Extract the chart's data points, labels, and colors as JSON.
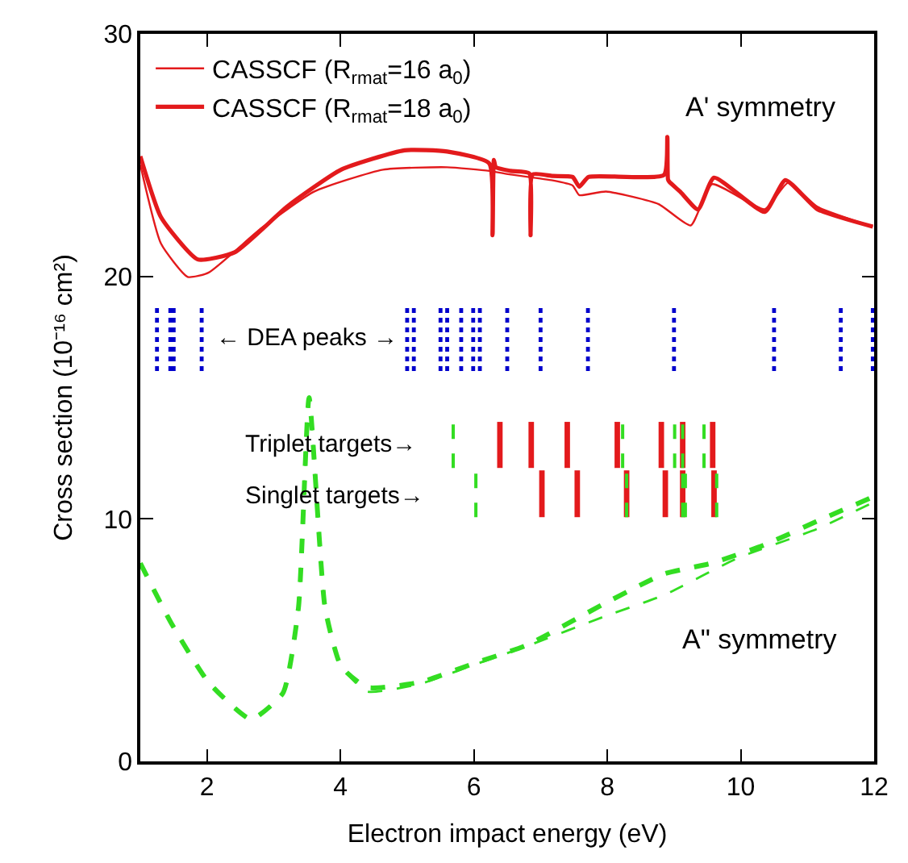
{
  "chart_data": {
    "type": "line",
    "xlabel": "Electron impact energy (eV)",
    "ylabel": "Cross section (10⁻¹⁶ cm²)",
    "xlim": [
      1,
      12
    ],
    "xticks": [
      2,
      4,
      6,
      8,
      10,
      12
    ],
    "ylim": [
      0,
      30
    ],
    "yticks": [
      0,
      10,
      20,
      30
    ],
    "legend": "top left",
    "marker": "none",
    "annotations": [
      "A' symmetry",
      "A\" symmetry",
      "← DEA peaks →",
      "Triplet targets→",
      "Singlet targets→"
    ],
    "series": [
      {
        "name": "CASSCF (R$_{rmat}$=16 a$_{0}$)",
        "color": "#e31a1c",
        "line_style": "solid",
        "x": [
          1.0,
          1.31,
          1.71,
          2.02,
          2.82,
          3.61,
          4.64,
          5.6,
          6.23,
          6.55,
          7.18,
          7.48,
          7.58,
          7.98,
          8.77,
          9.25,
          9.57,
          10.36,
          10.71,
          11.15,
          11.98
        ],
        "values": [
          24.6,
          21.35,
          19.98,
          20.15,
          22.0,
          23.5,
          24.4,
          24.5,
          24.35,
          24.2,
          23.96,
          23.75,
          23.35,
          23.5,
          22.98,
          22.1,
          23.8,
          22.77,
          23.86,
          22.87,
          22.05
        ]
      },
      {
        "name": "CASSCF (R$_{rmat}$=18 a$_{0}$)",
        "color": "#e31a1c",
        "line_style": "solid",
        "x": [
          1.0,
          1.31,
          1.86,
          2.42,
          3.21,
          4.01,
          4.96,
          5.6,
          6.23,
          6.28,
          6.3,
          6.33,
          6.55,
          6.83,
          6.85,
          6.88,
          7.18,
          7.48,
          7.58,
          7.72,
          8.85,
          8.9,
          8.91,
          8.93,
          9.09,
          9.36,
          9.6,
          10.36,
          10.67,
          11.15,
          11.98
        ],
        "values": [
          24.95,
          22.44,
          20.7,
          21.0,
          22.9,
          24.4,
          25.2,
          25.15,
          24.66,
          21.7,
          24.8,
          24.5,
          24.35,
          24.25,
          21.7,
          24.2,
          24.14,
          24.1,
          23.7,
          24.1,
          24.18,
          25.75,
          24.0,
          23.9,
          23.5,
          22.76,
          24.07,
          22.66,
          23.97,
          22.77,
          22.05
        ]
      },
      {
        "color": "#33dd22",
        "line_style": "dashed",
        "x": [
          1.0,
          1.47,
          2.02,
          2.66,
          3.14,
          3.37,
          3.53,
          3.77,
          4.01,
          4.4,
          5.2,
          5.99,
          6.79,
          7.98,
          8.85,
          9.96,
          11.15,
          11.98
        ],
        "values": [
          8.17,
          5.67,
          3.27,
          1.74,
          2.83,
          6.32,
          15.0,
          6.32,
          3.92,
          2.88,
          3.2,
          3.97,
          4.75,
          6.0,
          6.86,
          8.39,
          9.59,
          10.67
        ]
      },
      {
        "color": "#33dd22",
        "line_style": "dashed",
        "x": [
          1.0,
          1.47,
          2.02,
          2.66,
          3.14,
          3.37,
          3.53,
          3.77,
          4.01,
          4.4,
          5.2,
          5.99,
          6.79,
          7.98,
          8.85,
          9.56,
          10.36,
          11.15,
          11.98
        ],
        "values": [
          8.17,
          5.67,
          3.27,
          1.74,
          2.83,
          6.32,
          15.0,
          6.32,
          3.92,
          3.05,
          3.27,
          4.03,
          4.79,
          6.54,
          7.73,
          8.17,
          8.93,
          9.91,
          10.9
        ]
      },
      {
        "color": "#0000cc",
        "line_style": "dotted",
        "x": [
          1.25,
          1.25,
          null,
          1.45,
          1.45,
          null,
          1.5,
          1.5,
          null,
          1.92,
          1.92,
          null,
          5.0,
          5.0,
          null,
          5.1,
          5.1,
          null,
          5.5,
          5.5,
          null,
          5.6,
          5.6,
          null,
          5.81,
          5.81,
          null,
          5.99,
          5.99,
          null,
          6.09,
          6.09,
          null,
          6.5,
          6.5,
          null,
          7.0,
          7.0,
          null,
          7.71,
          7.71,
          null,
          9.0,
          9.0,
          null,
          10.5,
          10.5,
          null,
          11.5,
          11.5,
          null,
          11.98,
          11.98
        ],
        "values": [
          16.1,
          18.7,
          null,
          16.1,
          18.7,
          null,
          16.1,
          18.7,
          null,
          16.1,
          18.7,
          null,
          16.1,
          18.7,
          null,
          16.1,
          18.7,
          null,
          16.1,
          18.7,
          null,
          16.1,
          18.7,
          null,
          16.1,
          18.7,
          null,
          16.1,
          18.7,
          null,
          16.1,
          18.7,
          null,
          16.1,
          18.7,
          null,
          16.1,
          18.7,
          null,
          16.1,
          18.7,
          null,
          16.1,
          18.7,
          null,
          16.1,
          18.7,
          null,
          16.1,
          18.7,
          null,
          16.1,
          18.7
        ]
      },
      {
        "color": "#e31a1c",
        "line_style": "solid",
        "x": [
          6.39,
          6.39,
          null,
          6.86,
          6.86,
          null,
          7.4,
          7.4,
          null,
          8.15,
          8.15,
          null,
          8.81,
          8.81,
          null,
          9.13,
          9.13,
          null,
          9.58,
          9.58
        ],
        "values": [
          12.1,
          14.0,
          null,
          12.1,
          14.0,
          null,
          12.1,
          14.0,
          null,
          12.1,
          14.0,
          null,
          12.1,
          14.0,
          null,
          12.1,
          14.0,
          null,
          12.1,
          14.0
        ]
      },
      {
        "color": "#33dd22",
        "line_style": "dashed",
        "x": [
          5.69,
          5.69,
          null,
          8.23,
          8.23,
          null,
          9.01,
          9.01,
          null,
          9.13,
          9.13,
          null,
          9.45,
          9.45
        ],
        "values": [
          12.1,
          14.0,
          null,
          12.1,
          14.0,
          null,
          12.1,
          14.0,
          null,
          12.1,
          14.0,
          null,
          12.1,
          14.0
        ]
      },
      {
        "color": "#e31a1c",
        "line_style": "solid",
        "x": [
          7.02,
          7.02,
          null,
          7.55,
          7.55,
          null,
          8.29,
          8.29,
          null,
          8.87,
          8.87,
          null,
          9.13,
          9.13,
          null,
          9.6,
          9.6
        ],
        "values": [
          10.07,
          12.0,
          null,
          10.07,
          12.0,
          null,
          10.07,
          12.0,
          null,
          10.07,
          12.0,
          null,
          10.07,
          12.0,
          null,
          10.07,
          12.0
        ]
      },
      {
        "color": "#33dd22",
        "line_style": "dashed",
        "x": [
          6.03,
          6.03,
          null,
          8.29,
          8.29,
          null,
          9.13,
          9.13,
          null,
          9.17,
          9.17,
          null,
          9.64,
          9.64
        ],
        "values": [
          10.07,
          12.0,
          null,
          10.07,
          12.0,
          null,
          10.07,
          12.0,
          null,
          10.07,
          12.0,
          null,
          10.07,
          12.0
        ]
      }
    ]
  }
}
